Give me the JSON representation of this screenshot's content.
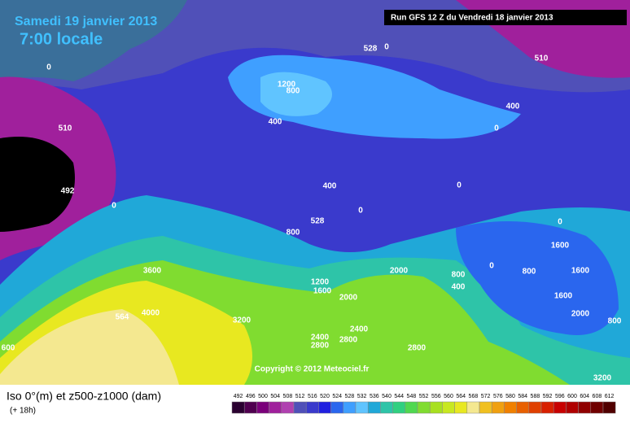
{
  "header": {
    "date": "Samedi 19 janvier 2013",
    "time": "7:00 locale",
    "run": "Run GFS 12 Z du Vendredi 18 janvier 2013"
  },
  "map": {
    "copyright": "Copyright © 2012 Meteociel.fr",
    "labels": [
      528,
      0,
      510,
      0,
      1200,
      800,
      400,
      0,
      400,
      510,
      492,
      0,
      400,
      0,
      0,
      528,
      800,
      0,
      1600,
      0,
      800,
      1600,
      3600,
      1200,
      1600,
      2000,
      800,
      400,
      1600,
      2000,
      800,
      564,
      4000,
      3200,
      2400,
      2800,
      2400,
      2800,
      2800,
      600,
      3200,
      2000
    ]
  },
  "footer": {
    "title": "Iso 0°(m) et z500-z1000 (dam)",
    "subtitle": "(+ 18h)",
    "scale": [
      492,
      496,
      500,
      504,
      508,
      512,
      516,
      520,
      524,
      528,
      532,
      536,
      540,
      544,
      548,
      552,
      556,
      560,
      564,
      568,
      572,
      576,
      580,
      584,
      588,
      592,
      596,
      600,
      604,
      608,
      612
    ]
  }
}
